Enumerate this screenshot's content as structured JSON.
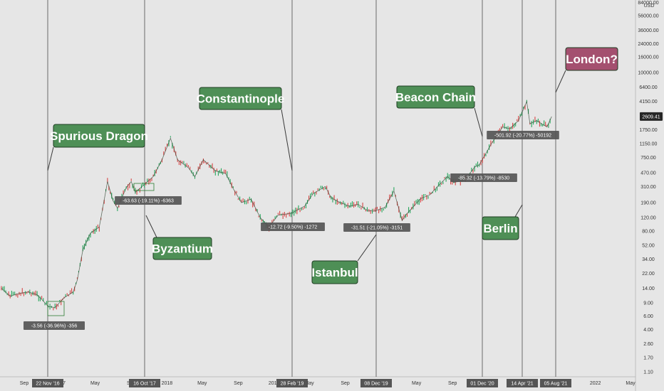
{
  "chart_data": {
    "type": "line",
    "title": "",
    "xlabel": "",
    "ylabel": "",
    "y_unit": "USD",
    "y_scale": "log",
    "ylim": [
      0.9,
      110000
    ],
    "grid": false,
    "last_price": "2609.41",
    "y_ticks": [
      "84000.00",
      "56000.00",
      "36000.00",
      "24000.00",
      "16000.00",
      "10000.00",
      "6400.00",
      "4150.00",
      "2609.41",
      "1750.00",
      "1150.00",
      "750.00",
      "470.00",
      "310.00",
      "190.00",
      "120.00",
      "80.00",
      "52.00",
      "34.00",
      "22.00",
      "14.00",
      "9.00",
      "6.00",
      "4.00",
      "2.60",
      "1.70",
      "1.10"
    ],
    "x_ticks": [
      {
        "label": "Sep",
        "date": "2016-09-01"
      },
      {
        "label": "2017",
        "date": "2017-01-01"
      },
      {
        "label": "May",
        "date": "2017-05-01"
      },
      {
        "label": "Sep",
        "date": "2017-09-01"
      },
      {
        "label": "2018",
        "date": "2018-01-01"
      },
      {
        "label": "May",
        "date": "2018-05-01"
      },
      {
        "label": "Sep",
        "date": "2018-09-01"
      },
      {
        "label": "2019",
        "date": "2019-01-01"
      },
      {
        "label": "May",
        "date": "2019-05-01"
      },
      {
        "label": "Sep",
        "date": "2019-09-01"
      },
      {
        "label": "2020",
        "date": "2020-01-01"
      },
      {
        "label": "May",
        "date": "2020-05-01"
      },
      {
        "label": "Sep",
        "date": "2020-09-01"
      },
      {
        "label": "2021",
        "date": "2021-01-01"
      },
      {
        "label": "May",
        "date": "2021-05-01"
      },
      {
        "label": "Sep",
        "date": "2021-09-01"
      },
      {
        "label": "2022",
        "date": "2022-01-01"
      },
      {
        "label": "May",
        "date": "2022-05-01"
      }
    ],
    "series": [
      {
        "x": [
          "2016-06-15",
          "2016-07-15",
          "2016-08-15",
          "2016-09-15",
          "2016-10-15",
          "2016-11-05",
          "2016-11-22",
          "2016-12-15",
          "2017-01-15",
          "2017-02-15",
          "2017-03-01",
          "2017-03-20",
          "2017-04-15",
          "2017-05-15",
          "2017-06-12",
          "2017-07-01",
          "2017-07-16",
          "2017-08-15",
          "2017-09-01",
          "2017-09-15",
          "2017-10-16",
          "2017-11-15",
          "2017-12-15",
          "2018-01-13",
          "2018-02-06",
          "2018-03-15",
          "2018-04-06",
          "2018-05-05",
          "2018-06-15",
          "2018-07-20",
          "2018-08-15",
          "2018-09-12",
          "2018-10-15",
          "2018-11-15",
          "2018-12-15",
          "2019-01-15",
          "2019-02-28",
          "2019-04-15",
          "2019-05-15",
          "2019-06-25",
          "2019-07-15",
          "2019-08-15",
          "2019-09-15",
          "2019-10-15",
          "2019-11-15",
          "2019-12-08",
          "2020-01-15",
          "2020-02-14",
          "2020-03-13",
          "2020-03-25",
          "2020-05-15",
          "2020-06-15",
          "2020-07-15",
          "2020-08-15",
          "2020-09-05",
          "2020-10-15",
          "2020-11-15",
          "2020-12-01",
          "2021-01-15",
          "2021-02-19",
          "2021-03-15",
          "2021-04-14",
          "2021-05-12",
          "2021-05-23",
          "2021-06-15",
          "2021-07-20",
          "2021-08-05"
        ],
        "y": [
          14.0,
          11.0,
          12.0,
          12.5,
          11.5,
          9.5,
          8.0,
          7.8,
          10.5,
          12.5,
          18.0,
          45.0,
          75.0,
          90.0,
          360.0,
          200.0,
          160.0,
          300.0,
          360.0,
          260.0,
          330.0,
          420.0,
          700.0,
          1350.0,
          700.0,
          550.0,
          420.0,
          700.0,
          500.0,
          460.0,
          290.0,
          190.0,
          210.0,
          120.0,
          90.0,
          130.0,
          137.0,
          170.0,
          250.0,
          310.0,
          220.0,
          190.0,
          170.0,
          180.0,
          150.0,
          146.0,
          165.0,
          270.0,
          110.0,
          130.0,
          215.0,
          240.0,
          320.0,
          420.0,
          350.0,
          380.0,
          560.0,
          600.0,
          1200.0,
          1900.0,
          1800.0,
          2300.0,
          4100.0,
          2100.0,
          2300.0,
          1900.0,
          2609.41
        ]
      }
    ],
    "events": [
      {
        "name": "Spurious Dragon",
        "date": "22 Nov '16"
      },
      {
        "name": "Byzantium",
        "date": "16 Oct '17"
      },
      {
        "name": "Constantinople",
        "date": "28 Feb '19"
      },
      {
        "name": "Istanbul",
        "date": "08 Dec '19"
      },
      {
        "name": "Beacon Chain",
        "date": "01 Dec '20"
      },
      {
        "name": "Berlin",
        "date": "14 Apr '21"
      },
      {
        "name": "London?",
        "date": "05 Aug '21"
      }
    ],
    "measures": [
      "-3.56 (-36.96%) -356",
      "-63.63 (-19.11%) -6363",
      "-12.72 (-9.50%) -1272",
      "-31.51 (-21.05%) -3151",
      "-85.32 (-13.79%) -8530",
      "-501.92 (-20.77%) -50192"
    ],
    "colors": {
      "background": "#e6e6e6",
      "price_line": "#2c3e2c",
      "up_candle": "#26a65b",
      "down_candle": "#d64545",
      "event_green": "#4e8f56",
      "event_pink": "#a4506f",
      "event_border": "#1f3d22",
      "label_bg": "#555555",
      "price_tag": "#262626"
    }
  }
}
